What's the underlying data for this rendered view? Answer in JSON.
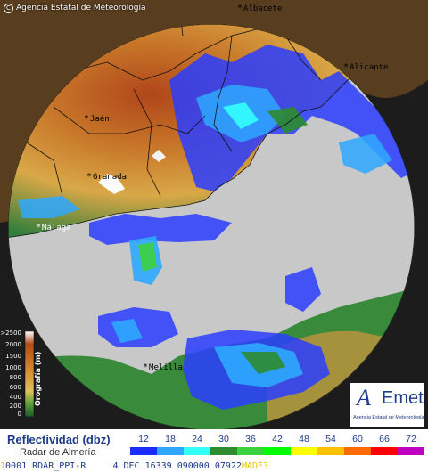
{
  "header": {
    "copyright": "Agencia Estatal de Meteorología"
  },
  "cities": [
    {
      "id": "albacete",
      "label": "Albacete"
    },
    {
      "id": "alicante",
      "label": "Alicante"
    },
    {
      "id": "jaen",
      "label": "Jaén"
    },
    {
      "id": "granada",
      "label": "Granada"
    },
    {
      "id": "malaga",
      "label": "Málaga"
    },
    {
      "id": "melilla",
      "label": "Melilla"
    }
  ],
  "orography": {
    "title": "Orografía (m)",
    "levels": [
      ">2500",
      "2000",
      "1500",
      "1000",
      "800",
      "600",
      "400",
      "200",
      "0"
    ]
  },
  "logo": {
    "brand_a": "A",
    "brand_met": "Emet",
    "subtitle": "Agencia Estatal de Meteorología"
  },
  "legend": {
    "title": "Reflectividad (dbz)",
    "radar": "Radar de Almería",
    "scale": [
      {
        "value": "12",
        "color": "#1a2cff"
      },
      {
        "value": "18",
        "color": "#2ea8ff"
      },
      {
        "value": "24",
        "color": "#33ffff"
      },
      {
        "value": "30",
        "color": "#2e8b2e"
      },
      {
        "value": "36",
        "color": "#3cd23c"
      },
      {
        "value": "42",
        "color": "#00ff00"
      },
      {
        "value": "48",
        "color": "#ffff00"
      },
      {
        "value": "54",
        "color": "#ffc000"
      },
      {
        "value": "60",
        "color": "#ff6a00"
      },
      {
        "value": "66",
        "color": "#ff0000"
      },
      {
        "value": "72",
        "color": "#c000c0"
      }
    ]
  },
  "status": {
    "prefix": "1",
    "line": "0001 RDAR_PPI-R     4 DEC 16339 090000 07922",
    "tail": "MADE3"
  }
}
